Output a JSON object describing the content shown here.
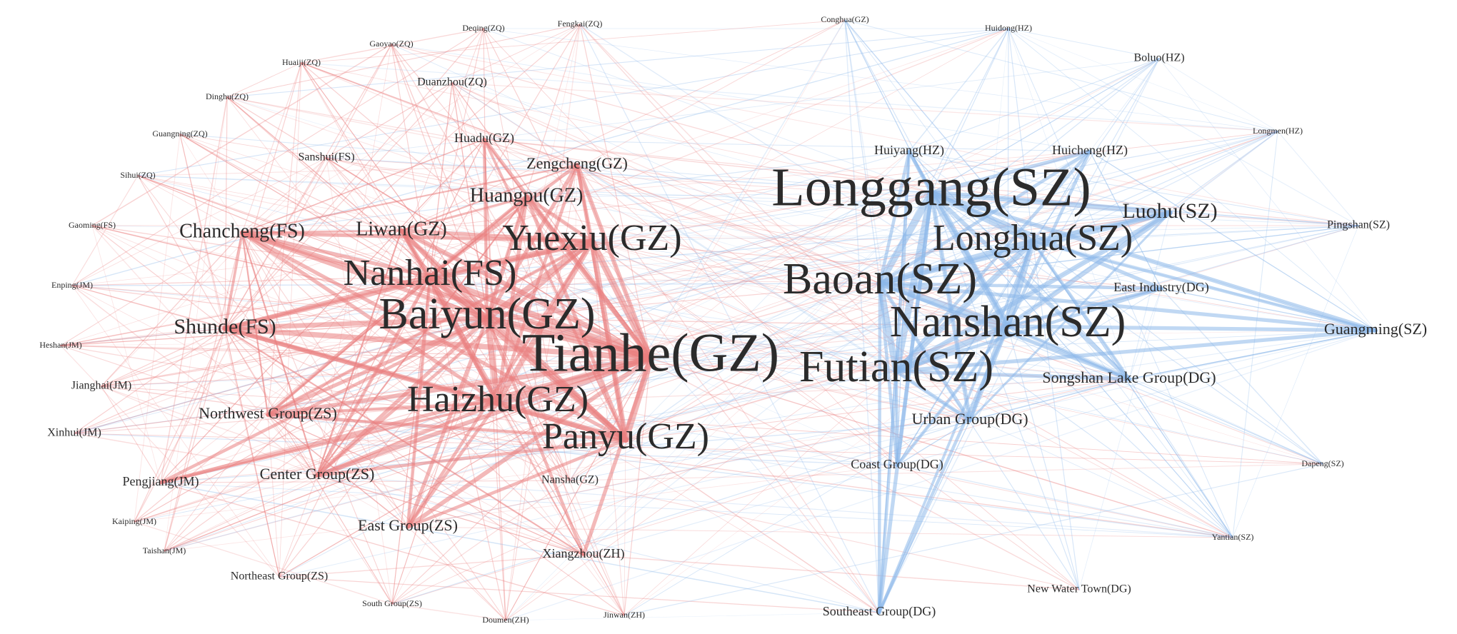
{
  "colors": {
    "guangzhou_cluster_edge": "#ea7f7f",
    "shenzhen_cluster_edge": "#8cb8ea",
    "label": "#2b2b2b"
  },
  "nodes": [
    {
      "label": "Deqing(ZQ)",
      "group": "west",
      "weight": 1
    },
    {
      "label": "Fengkai(ZQ)",
      "group": "west",
      "weight": 1
    },
    {
      "label": "Gaoyao(ZQ)",
      "group": "west",
      "weight": 1
    },
    {
      "label": "Huaiji(ZQ)",
      "group": "west",
      "weight": 1
    },
    {
      "label": "Duanzhou(ZQ)",
      "group": "west",
      "weight": 2
    },
    {
      "label": "Dinghu(ZQ)",
      "group": "west",
      "weight": 1
    },
    {
      "label": "Guangning(ZQ)",
      "group": "west",
      "weight": 1
    },
    {
      "label": "Sihui(ZQ)",
      "group": "west",
      "weight": 1
    },
    {
      "label": "Huadu(GZ)",
      "group": "west",
      "weight": 3
    },
    {
      "label": "Sanshui(FS)",
      "group": "west",
      "weight": 2
    },
    {
      "label": "Zengcheng(GZ)",
      "group": "west",
      "weight": 4
    },
    {
      "label": "Huangpu(GZ)",
      "group": "west",
      "weight": 5
    },
    {
      "label": "Gaoming(FS)",
      "group": "west",
      "weight": 1
    },
    {
      "label": "Chancheng(FS)",
      "group": "west",
      "weight": 5
    },
    {
      "label": "Liwan(GZ)",
      "group": "west",
      "weight": 5
    },
    {
      "label": "Yuexiu(GZ)",
      "group": "west",
      "weight": 8
    },
    {
      "label": "Enping(JM)",
      "group": "west",
      "weight": 1
    },
    {
      "label": "Nanhai(FS)",
      "group": "west",
      "weight": 8
    },
    {
      "label": "Baiyun(GZ)",
      "group": "west",
      "weight": 9
    },
    {
      "label": "Shunde(FS)",
      "group": "west",
      "weight": 6
    },
    {
      "label": "Heshan(JM)",
      "group": "west",
      "weight": 1
    },
    {
      "label": "Tianhe(GZ)",
      "group": "west",
      "weight": 10
    },
    {
      "label": "Jianghai(JM)",
      "group": "west",
      "weight": 2
    },
    {
      "label": "Northwest Group(ZS)",
      "group": "west",
      "weight": 4
    },
    {
      "label": "Haizhu(GZ)",
      "group": "west",
      "weight": 8
    },
    {
      "label": "Xinhui(JM)",
      "group": "west",
      "weight": 2
    },
    {
      "label": "Panyu(GZ)",
      "group": "west",
      "weight": 8
    },
    {
      "label": "Pengjiang(JM)",
      "group": "west",
      "weight": 3
    },
    {
      "label": "Center Group(ZS)",
      "group": "west",
      "weight": 4
    },
    {
      "label": "Nansha(GZ)",
      "group": "west",
      "weight": 2
    },
    {
      "label": "Kaiping(JM)",
      "group": "west",
      "weight": 1
    },
    {
      "label": "East Group(ZS)",
      "group": "west",
      "weight": 4
    },
    {
      "label": "Taishan(JM)",
      "group": "west",
      "weight": 1
    },
    {
      "label": "Xiangzhou(ZH)",
      "group": "west",
      "weight": 3
    },
    {
      "label": "Northeast Group(ZS)",
      "group": "west",
      "weight": 2
    },
    {
      "label": "South Group(ZS)",
      "group": "west",
      "weight": 1
    },
    {
      "label": "Doumen(ZH)",
      "group": "west",
      "weight": 1
    },
    {
      "label": "Jinwan(ZH)",
      "group": "west",
      "weight": 1
    },
    {
      "label": "Conghua(GZ)",
      "group": "east",
      "weight": 1
    },
    {
      "label": "Huidong(HZ)",
      "group": "east",
      "weight": 1
    },
    {
      "label": "Boluo(HZ)",
      "group": "east",
      "weight": 2
    },
    {
      "label": "Longmen(HZ)",
      "group": "east",
      "weight": 1
    },
    {
      "label": "Huiyang(HZ)",
      "group": "east",
      "weight": 3
    },
    {
      "label": "Huicheng(HZ)",
      "group": "east",
      "weight": 3
    },
    {
      "label": "Longgang(SZ)",
      "group": "east",
      "weight": 10
    },
    {
      "label": "Luohu(SZ)",
      "group": "east",
      "weight": 6
    },
    {
      "label": "Pingshan(SZ)",
      "group": "east",
      "weight": 2
    },
    {
      "label": "Longhua(SZ)",
      "group": "east",
      "weight": 8
    },
    {
      "label": "Baoan(SZ)",
      "group": "east",
      "weight": 9
    },
    {
      "label": "East Industry(DG)",
      "group": "east",
      "weight": 3
    },
    {
      "label": "Nanshan(SZ)",
      "group": "east",
      "weight": 9
    },
    {
      "label": "Guangming(SZ)",
      "group": "east",
      "weight": 4
    },
    {
      "label": "Futian(SZ)",
      "group": "east",
      "weight": 9
    },
    {
      "label": "Songshan Lake Group(DG)",
      "group": "east",
      "weight": 4
    },
    {
      "label": "Urban Group(DG)",
      "group": "east",
      "weight": 4
    },
    {
      "label": "Coast Group(DG)",
      "group": "east",
      "weight": 3
    },
    {
      "label": "Dapeng(SZ)",
      "group": "east",
      "weight": 1
    },
    {
      "label": "Yantian(SZ)",
      "group": "east",
      "weight": 1
    },
    {
      "label": "New Water Town(DG)",
      "group": "east",
      "weight": 2
    },
    {
      "label": "Southeast Group(DG)",
      "group": "east",
      "weight": 3
    }
  ]
}
